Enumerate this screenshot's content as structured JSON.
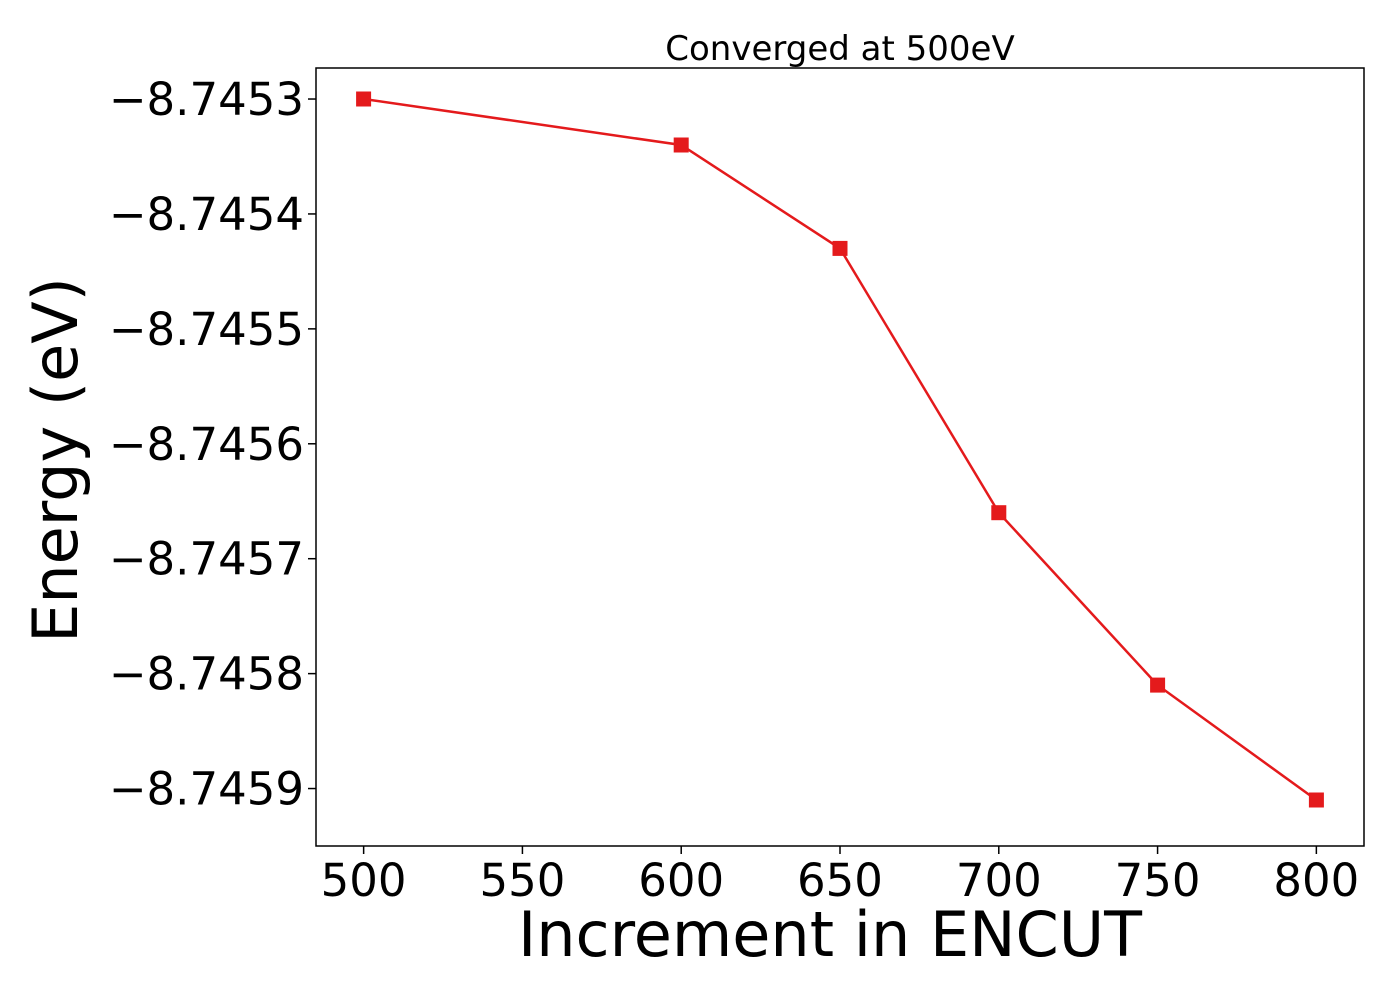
{
  "chart_data": {
    "type": "line",
    "title": "Converged at 500eV",
    "xlabel": "Increment in ENCUT",
    "ylabel": "Energy (eV)",
    "x": [
      500,
      600,
      650,
      700,
      750,
      800
    ],
    "series": [
      {
        "values": [
          -8.7453,
          -8.74534,
          -8.74543,
          -8.74566,
          -8.74581,
          -8.74591
        ],
        "color": "#e41a1c",
        "marker": "square"
      }
    ],
    "xlim": [
      485,
      815
    ],
    "ylim": [
      -8.74595,
      -8.745273
    ],
    "xticks": [
      500,
      550,
      600,
      650,
      700,
      750,
      800
    ],
    "xtick_labels": [
      "500",
      "550",
      "600",
      "650",
      "700",
      "750",
      "800"
    ],
    "yticks": [
      -8.7453,
      -8.7454,
      -8.7455,
      -8.7456,
      -8.7457,
      -8.7458,
      -8.7459
    ],
    "ytick_labels": [
      "−8.7453",
      "−8.7454",
      "−8.7455",
      "−8.7456",
      "−8.7457",
      "−8.7458",
      "−8.7459"
    ],
    "grid": false,
    "legend": "none"
  }
}
